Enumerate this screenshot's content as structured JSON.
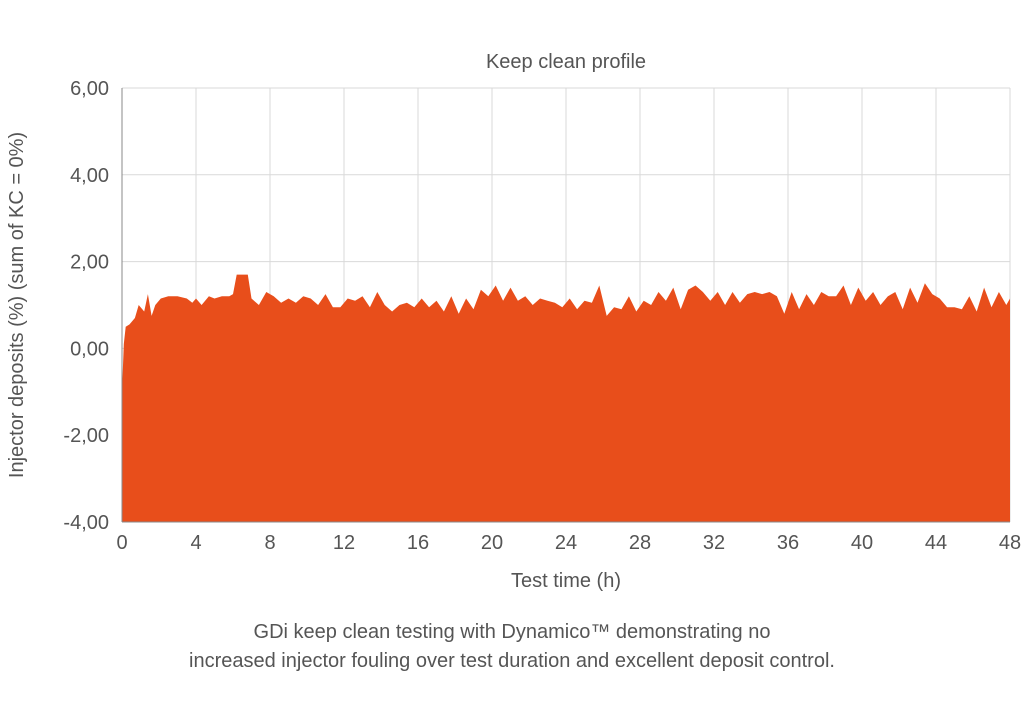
{
  "chart_data": {
    "type": "area",
    "title": "Keep clean profile",
    "xlabel": "Test time (h)",
    "ylabel": "Injector deposits (%) (sum of KC = 0%)",
    "xlim": [
      0,
      48
    ],
    "ylim": [
      -4,
      6
    ],
    "x_ticks": [
      "0",
      "4",
      "8",
      "12",
      "16",
      "20",
      "24",
      "28",
      "32",
      "36",
      "40",
      "44",
      "48"
    ],
    "y_ticks": [
      "-4,00",
      "-2,00",
      "0,00",
      "2,00",
      "4,00",
      "6,00"
    ],
    "grid": true,
    "baseline": -4,
    "fill_color": "#E84E1B",
    "series": [
      {
        "x": [
          0,
          0.1,
          0.2,
          0.4,
          0.7,
          0.9,
          1.2,
          1.4,
          1.6,
          1.8,
          2.1,
          2.5,
          3.0,
          3.5,
          3.8,
          4.0,
          4.3,
          4.7,
          5.0,
          5.4,
          5.8,
          6.0,
          6.2,
          6.6,
          6.8,
          7.0,
          7.4,
          7.8,
          8.2,
          8.6,
          9.0,
          9.4,
          9.8,
          10.2,
          10.6,
          11.0,
          11.4,
          11.8,
          12.2,
          12.6,
          13.0,
          13.4,
          13.8,
          14.2,
          14.6,
          15.0,
          15.4,
          15.8,
          16.2,
          16.6,
          17.0,
          17.4,
          17.8,
          18.2,
          18.6,
          19.0,
          19.4,
          19.8,
          20.2,
          20.6,
          21.0,
          21.4,
          21.8,
          22.2,
          22.6,
          23.0,
          23.4,
          23.8,
          24.2,
          24.6,
          25.0,
          25.4,
          25.8,
          26.2,
          26.6,
          27.0,
          27.4,
          27.8,
          28.2,
          28.6,
          29.0,
          29.4,
          29.8,
          30.2,
          30.6,
          31.0,
          31.4,
          31.8,
          32.2,
          32.6,
          33.0,
          33.4,
          33.8,
          34.2,
          34.6,
          35.0,
          35.4,
          35.8,
          36.2,
          36.6,
          37.0,
          37.4,
          37.8,
          38.2,
          38.6,
          39.0,
          39.4,
          39.8,
          40.2,
          40.6,
          41.0,
          41.4,
          41.8,
          42.2,
          42.6,
          43.0,
          43.4,
          43.8,
          44.2,
          44.6,
          45.0,
          45.4,
          45.8,
          46.2,
          46.6,
          47.0,
          47.4,
          47.8,
          48.0
        ],
        "y": [
          -1.0,
          0.1,
          0.5,
          0.55,
          0.7,
          1.0,
          0.85,
          1.25,
          0.75,
          1.0,
          1.15,
          1.2,
          1.2,
          1.15,
          1.05,
          1.15,
          1.0,
          1.2,
          1.15,
          1.2,
          1.2,
          1.25,
          1.7,
          1.7,
          1.7,
          1.15,
          1.0,
          1.3,
          1.2,
          1.05,
          1.15,
          1.05,
          1.2,
          1.15,
          1.0,
          1.25,
          0.95,
          0.95,
          1.15,
          1.1,
          1.2,
          0.95,
          1.3,
          1.0,
          0.85,
          1.0,
          1.05,
          0.95,
          1.15,
          0.95,
          1.1,
          0.85,
          1.2,
          0.8,
          1.15,
          0.9,
          1.35,
          1.2,
          1.45,
          1.1,
          1.4,
          1.1,
          1.2,
          1.0,
          1.15,
          1.1,
          1.05,
          0.95,
          1.15,
          0.9,
          1.1,
          1.05,
          1.45,
          0.75,
          0.95,
          0.9,
          1.2,
          0.85,
          1.1,
          1.0,
          1.3,
          1.1,
          1.4,
          0.9,
          1.35,
          1.45,
          1.3,
          1.1,
          1.3,
          1.0,
          1.3,
          1.05,
          1.25,
          1.3,
          1.25,
          1.3,
          1.2,
          0.8,
          1.3,
          0.9,
          1.25,
          1.0,
          1.3,
          1.2,
          1.2,
          1.45,
          1.0,
          1.4,
          1.1,
          1.3,
          1.0,
          1.2,
          1.3,
          0.9,
          1.4,
          1.05,
          1.5,
          1.25,
          1.15,
          0.95,
          0.95,
          0.9,
          1.2,
          0.85,
          1.4,
          0.95,
          1.3,
          1.0,
          1.15
        ]
      }
    ]
  },
  "caption": {
    "line1": "GDi keep clean testing with Dynamico™ demonstrating no",
    "line2": "increased injector fouling over test duration and excellent deposit control."
  }
}
